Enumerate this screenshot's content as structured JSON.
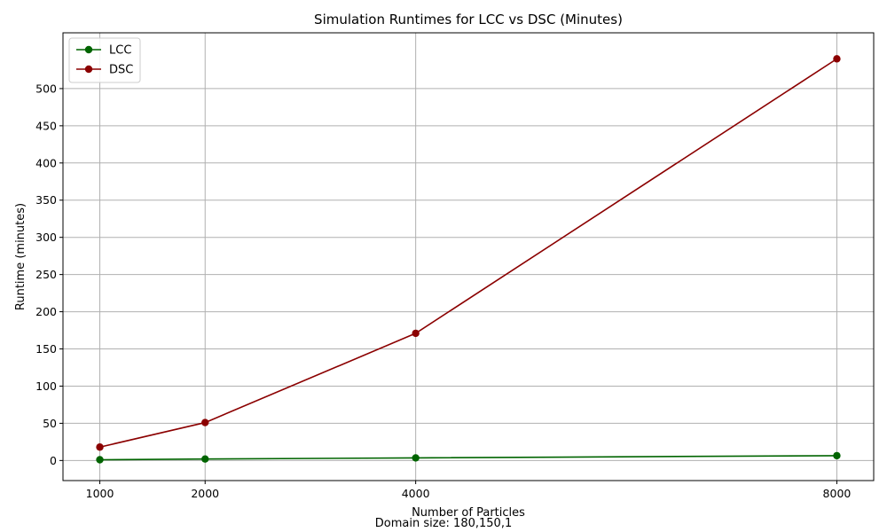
{
  "chart_data": {
    "type": "line",
    "title": "Simulation Runtimes for LCC vs DSC (Minutes)",
    "xlabel": "Number of Particles",
    "ylabel": "Runtime (minutes)",
    "footnote": "Domain size: 180,150,1",
    "x": [
      1000,
      2000,
      4000,
      8000
    ],
    "x_ticks": [
      "1000",
      "2000",
      "4000",
      "8000"
    ],
    "y_ticks": [
      "0",
      "50",
      "100",
      "150",
      "200",
      "250",
      "300",
      "350",
      "400",
      "450",
      "500"
    ],
    "xlim": [
      650,
      8350
    ],
    "ylim": [
      -27,
      575
    ],
    "grid": true,
    "legend_position": "top-left",
    "series": [
      {
        "name": "LCC",
        "color": "#006400",
        "values": [
          1,
          2,
          3.5,
          6.5
        ]
      },
      {
        "name": "DSC",
        "color": "#8b0000",
        "values": [
          18,
          51,
          171,
          540
        ]
      }
    ]
  }
}
